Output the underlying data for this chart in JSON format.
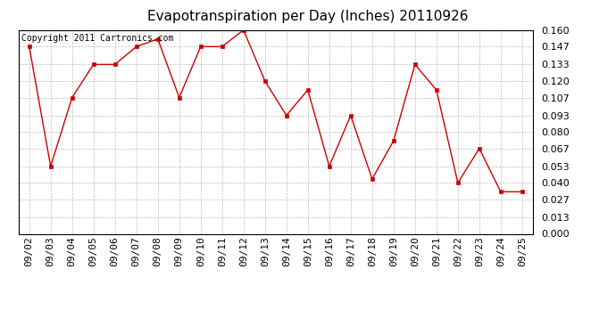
{
  "title": "Evapotranspiration per Day (Inches) 20110926",
  "copyright_text": "Copyright 2011 Cartronics.com",
  "x_labels": [
    "09/02",
    "09/03",
    "09/04",
    "09/05",
    "09/06",
    "09/07",
    "09/08",
    "09/09",
    "09/10",
    "09/11",
    "09/12",
    "09/13",
    "09/14",
    "09/15",
    "09/16",
    "09/17",
    "09/18",
    "09/19",
    "09/20",
    "09/21",
    "09/22",
    "09/23",
    "09/24",
    "09/25"
  ],
  "y_values": [
    0.147,
    0.053,
    0.107,
    0.133,
    0.133,
    0.147,
    0.153,
    0.107,
    0.147,
    0.147,
    0.16,
    0.12,
    0.093,
    0.113,
    0.053,
    0.093,
    0.043,
    0.073,
    0.133,
    0.113,
    0.04,
    0.067,
    0.033,
    0.033
  ],
  "y_ticks": [
    0.0,
    0.013,
    0.027,
    0.04,
    0.053,
    0.067,
    0.08,
    0.093,
    0.107,
    0.12,
    0.133,
    0.147,
    0.16
  ],
  "line_color": "#cc0000",
  "marker_color": "#cc0000",
  "bg_color": "#ffffff",
  "grid_color": "#aaaaaa",
  "title_fontsize": 11,
  "copyright_fontsize": 7,
  "ylim": [
    0.0,
    0.16
  ],
  "tick_label_fontsize": 8
}
